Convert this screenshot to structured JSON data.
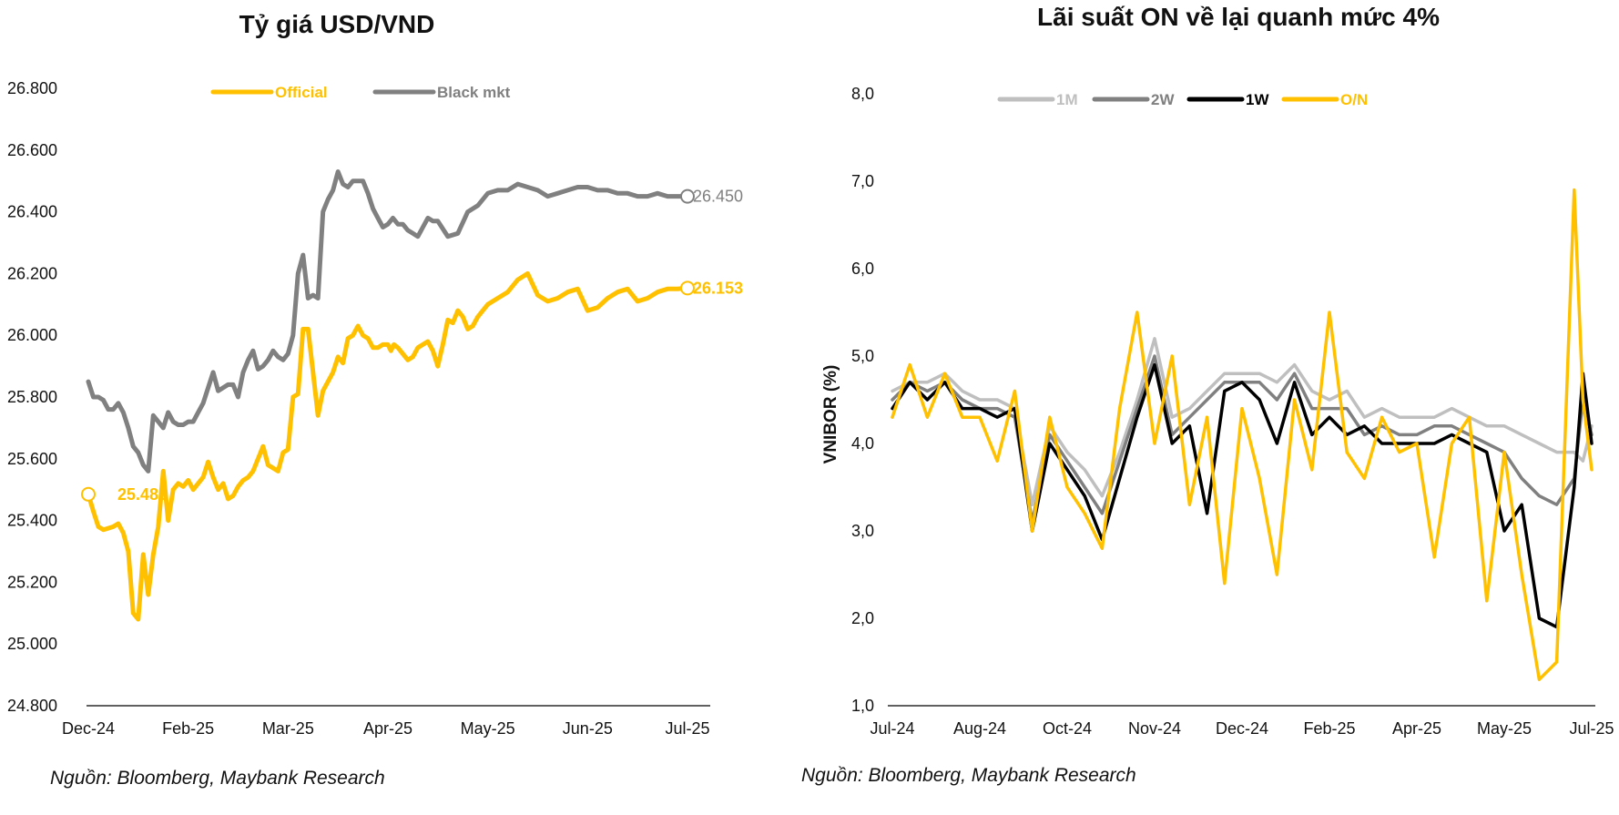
{
  "chart_data": [
    {
      "type": "line",
      "title": "Tỷ giá USD/VND",
      "ylim": [
        24800,
        26800
      ],
      "yticks": [
        "24.800",
        "25.000",
        "25.200",
        "25.400",
        "25.600",
        "25.800",
        "26.000",
        "26.200",
        "26.400",
        "26.600",
        "26.800"
      ],
      "xticks": [
        "Dec-24",
        "Feb-25",
        "Mar-25",
        "Apr-25",
        "May-25",
        "Jun-25",
        "Jul-25"
      ],
      "xticks_pos": [
        0,
        1,
        2,
        3,
        4,
        5,
        6
      ],
      "legend_position": "top",
      "grid": false,
      "series": [
        {
          "name": "Official",
          "color": "#FFC000",
          "end_label": "26.153",
          "start_label": "25.485",
          "x": [
            0.0,
            0.05,
            0.1,
            0.15,
            0.2,
            0.25,
            0.3,
            0.35,
            0.4,
            0.45,
            0.5,
            0.55,
            0.6,
            0.65,
            0.7,
            0.75,
            0.8,
            0.85,
            0.9,
            0.95,
            1.0,
            1.05,
            1.1,
            1.15,
            1.2,
            1.25,
            1.3,
            1.35,
            1.4,
            1.45,
            1.5,
            1.55,
            1.6,
            1.65,
            1.7,
            1.75,
            1.8,
            1.85,
            1.9,
            1.95,
            2.0,
            2.05,
            2.1,
            2.15,
            2.2,
            2.25,
            2.3,
            2.35,
            2.4,
            2.45,
            2.5,
            2.55,
            2.6,
            2.65,
            2.7,
            2.75,
            2.8,
            2.85,
            2.9,
            2.95,
            3.0,
            3.03,
            3.06,
            3.1,
            3.15,
            3.2,
            3.25,
            3.3,
            3.35,
            3.4,
            3.45,
            3.5,
            3.55,
            3.6,
            3.65,
            3.7,
            3.75,
            3.8,
            3.85,
            3.9,
            3.95,
            4.0,
            4.1,
            4.2,
            4.3,
            4.4,
            4.5,
            4.6,
            4.7,
            4.8,
            4.9,
            5.0,
            5.1,
            5.2,
            5.3,
            5.4,
            5.5,
            5.6,
            5.7,
            5.8,
            5.9,
            6.0
          ],
          "values": [
            25485,
            25430,
            25380,
            25370,
            25375,
            25380,
            25390,
            25360,
            25300,
            25100,
            25080,
            25290,
            25160,
            25290,
            25380,
            25560,
            25400,
            25500,
            25520,
            25510,
            25530,
            25500,
            25520,
            25540,
            25590,
            25540,
            25500,
            25520,
            25470,
            25480,
            25510,
            25530,
            25540,
            25560,
            25600,
            25640,
            25580,
            25570,
            25560,
            25620,
            25630,
            25800,
            25810,
            26020,
            26020,
            25880,
            25740,
            25820,
            25850,
            25880,
            25930,
            25910,
            25990,
            26000,
            26030,
            26000,
            25990,
            25960,
            25960,
            25970,
            25970,
            25950,
            25970,
            25960,
            25940,
            25920,
            25930,
            25960,
            25970,
            25980,
            25950,
            25900,
            25970,
            26050,
            26040,
            26080,
            26060,
            26020,
            26030,
            26060,
            26080,
            26100,
            26120,
            26140,
            26180,
            26200,
            26130,
            26110,
            26120,
            26140,
            26150,
            26080,
            26090,
            26120,
            26140,
            26150,
            26110,
            26120,
            26140,
            26150,
            26150,
            26153
          ]
        },
        {
          "name": "Black mkt",
          "color": "#808080",
          "end_label": "26.450",
          "x": [
            0.0,
            0.05,
            0.1,
            0.15,
            0.2,
            0.25,
            0.3,
            0.35,
            0.4,
            0.45,
            0.5,
            0.55,
            0.6,
            0.65,
            0.7,
            0.75,
            0.8,
            0.85,
            0.9,
            0.95,
            1.0,
            1.05,
            1.1,
            1.15,
            1.2,
            1.25,
            1.3,
            1.35,
            1.4,
            1.45,
            1.5,
            1.55,
            1.6,
            1.65,
            1.7,
            1.75,
            1.8,
            1.85,
            1.9,
            1.95,
            2.0,
            2.05,
            2.1,
            2.15,
            2.2,
            2.25,
            2.3,
            2.35,
            2.4,
            2.45,
            2.5,
            2.55,
            2.6,
            2.65,
            2.7,
            2.75,
            2.8,
            2.85,
            2.9,
            2.95,
            3.0,
            3.05,
            3.1,
            3.15,
            3.2,
            3.25,
            3.3,
            3.35,
            3.4,
            3.45,
            3.5,
            3.6,
            3.7,
            3.8,
            3.9,
            4.0,
            4.1,
            4.2,
            4.3,
            4.4,
            4.5,
            4.6,
            4.7,
            4.8,
            4.9,
            5.0,
            5.1,
            5.2,
            5.3,
            5.4,
            5.5,
            5.6,
            5.7,
            5.8,
            5.9,
            6.0
          ],
          "values": [
            25850,
            25800,
            25800,
            25790,
            25760,
            25760,
            25780,
            25750,
            25700,
            25640,
            25620,
            25580,
            25560,
            25740,
            25720,
            25700,
            25750,
            25720,
            25710,
            25710,
            25720,
            25720,
            25750,
            25780,
            25830,
            25880,
            25820,
            25830,
            25840,
            25840,
            25800,
            25880,
            25920,
            25950,
            25890,
            25900,
            25920,
            25950,
            25930,
            25920,
            25940,
            26000,
            26200,
            26260,
            26120,
            26130,
            26120,
            26400,
            26440,
            26470,
            26530,
            26490,
            26480,
            26500,
            26500,
            26500,
            26460,
            26410,
            26380,
            26350,
            26360,
            26380,
            26360,
            26360,
            26340,
            26330,
            26320,
            26350,
            26380,
            26370,
            26370,
            26320,
            26330,
            26400,
            26420,
            26460,
            26470,
            26470,
            26490,
            26480,
            26470,
            26450,
            26460,
            26470,
            26480,
            26480,
            26470,
            26470,
            26460,
            26460,
            26450,
            26450,
            26460,
            26450,
            26450,
            26450
          ]
        }
      ]
    },
    {
      "type": "line",
      "title": "Lãi suất ON về lại quanh mức 4%",
      "ylabel": "VNIBOR (%)",
      "ylim": [
        1.0,
        8.0
      ],
      "yticks": [
        "1,0",
        "2,0",
        "3,0",
        "4,0",
        "5,0",
        "6,0",
        "7,0",
        "8,0"
      ],
      "xticks": [
        "Jul-24",
        "Aug-24",
        "Oct-24",
        "Nov-24",
        "Dec-24",
        "Feb-25",
        "Apr-25",
        "May-25",
        "Jul-25"
      ],
      "xticks_pos": [
        0,
        1,
        2,
        3,
        4,
        5,
        6,
        7,
        8
      ],
      "legend_position": "top",
      "grid": false,
      "series": [
        {
          "name": "1M",
          "color": "#BFBFBF",
          "x": [
            0.0,
            0.2,
            0.4,
            0.6,
            0.8,
            1.0,
            1.2,
            1.4,
            1.6,
            1.8,
            2.0,
            2.2,
            2.4,
            2.6,
            2.8,
            3.0,
            3.2,
            3.4,
            3.6,
            3.8,
            4.0,
            4.2,
            4.4,
            4.6,
            4.8,
            5.0,
            5.2,
            5.4,
            5.6,
            5.8,
            6.0,
            6.2,
            6.4,
            6.6,
            6.8,
            7.0,
            7.2,
            7.4,
            7.6,
            7.8,
            7.9,
            8.0
          ],
          "values": [
            4.6,
            4.7,
            4.7,
            4.8,
            4.6,
            4.5,
            4.5,
            4.4,
            3.3,
            4.2,
            3.9,
            3.7,
            3.4,
            3.9,
            4.5,
            5.2,
            4.3,
            4.4,
            4.6,
            4.8,
            4.8,
            4.8,
            4.7,
            4.9,
            4.6,
            4.5,
            4.6,
            4.3,
            4.4,
            4.3,
            4.3,
            4.3,
            4.4,
            4.3,
            4.2,
            4.2,
            4.1,
            4.0,
            3.9,
            3.9,
            3.8,
            4.2
          ]
        },
        {
          "name": "2W",
          "color": "#808080",
          "x": [
            0.0,
            0.2,
            0.4,
            0.6,
            0.8,
            1.0,
            1.2,
            1.4,
            1.6,
            1.8,
            2.0,
            2.2,
            2.4,
            2.6,
            2.8,
            3.0,
            3.2,
            3.4,
            3.6,
            3.8,
            4.0,
            4.2,
            4.4,
            4.6,
            4.8,
            5.0,
            5.2,
            5.4,
            5.6,
            5.8,
            6.0,
            6.2,
            6.4,
            6.6,
            6.8,
            7.0,
            7.2,
            7.4,
            7.6,
            7.8,
            7.9,
            8.0
          ],
          "values": [
            4.5,
            4.7,
            4.6,
            4.7,
            4.5,
            4.4,
            4.4,
            4.3,
            3.1,
            4.1,
            3.8,
            3.5,
            3.2,
            3.8,
            4.4,
            5.0,
            4.1,
            4.3,
            4.5,
            4.7,
            4.7,
            4.7,
            4.5,
            4.8,
            4.4,
            4.4,
            4.4,
            4.1,
            4.2,
            4.1,
            4.1,
            4.2,
            4.2,
            4.1,
            4.0,
            3.9,
            3.6,
            3.4,
            3.3,
            3.6,
            4.5,
            4.1
          ]
        },
        {
          "name": "1W",
          "color": "#000000",
          "x": [
            0.0,
            0.2,
            0.4,
            0.6,
            0.8,
            1.0,
            1.2,
            1.4,
            1.6,
            1.8,
            2.0,
            2.2,
            2.4,
            2.6,
            2.8,
            3.0,
            3.2,
            3.4,
            3.6,
            3.8,
            4.0,
            4.2,
            4.4,
            4.6,
            4.8,
            5.0,
            5.2,
            5.4,
            5.6,
            5.8,
            6.0,
            6.2,
            6.4,
            6.6,
            6.8,
            7.0,
            7.2,
            7.4,
            7.6,
            7.8,
            7.9,
            8.0
          ],
          "values": [
            4.4,
            4.7,
            4.5,
            4.7,
            4.4,
            4.4,
            4.3,
            4.4,
            3.0,
            4.0,
            3.7,
            3.4,
            2.9,
            3.6,
            4.3,
            4.9,
            4.0,
            4.2,
            3.2,
            4.6,
            4.7,
            4.5,
            4.0,
            4.7,
            4.1,
            4.3,
            4.1,
            4.2,
            4.0,
            4.0,
            4.0,
            4.0,
            4.1,
            4.0,
            3.9,
            3.0,
            3.3,
            2.0,
            1.9,
            3.5,
            4.8,
            4.0
          ]
        },
        {
          "name": "O/N",
          "color": "#FFC000",
          "x": [
            0.0,
            0.2,
            0.4,
            0.6,
            0.8,
            1.0,
            1.2,
            1.4,
            1.6,
            1.8,
            2.0,
            2.2,
            2.4,
            2.6,
            2.8,
            3.0,
            3.2,
            3.4,
            3.6,
            3.8,
            4.0,
            4.2,
            4.4,
            4.6,
            4.8,
            5.0,
            5.2,
            5.4,
            5.6,
            5.8,
            6.0,
            6.2,
            6.4,
            6.6,
            6.8,
            7.0,
            7.2,
            7.4,
            7.6,
            7.8,
            7.9,
            8.0
          ],
          "values": [
            4.3,
            4.9,
            4.3,
            4.8,
            4.3,
            4.3,
            3.8,
            4.6,
            3.0,
            4.3,
            3.5,
            3.2,
            2.8,
            4.4,
            5.5,
            4.0,
            5.0,
            3.3,
            4.3,
            2.4,
            4.4,
            3.6,
            2.5,
            4.5,
            3.7,
            5.5,
            3.9,
            3.6,
            4.3,
            3.9,
            4.0,
            2.7,
            4.0,
            4.3,
            2.2,
            3.9,
            2.5,
            1.3,
            1.5,
            6.9,
            4.5,
            3.7
          ]
        }
      ]
    }
  ],
  "sources": [
    "Nguồn: Bloomberg, Maybank Research",
    "Nguồn: Bloomberg, Maybank Research"
  ]
}
